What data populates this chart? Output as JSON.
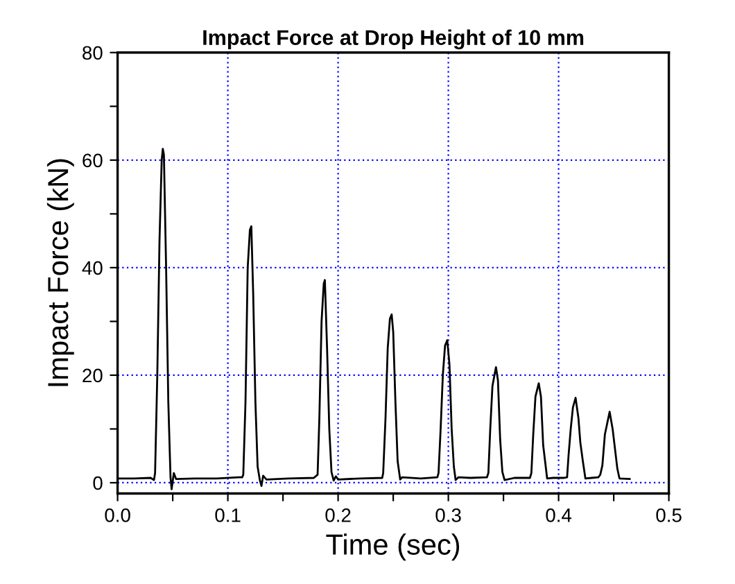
{
  "chart_data": {
    "type": "line",
    "title": "Impact Force at Drop Height of 10 mm",
    "xlabel": "Time (sec)",
    "ylabel": "Impact Force (kN)",
    "xlim": [
      0,
      0.5
    ],
    "ylim": [
      -2,
      80
    ],
    "xticks": [
      {
        "value": 0,
        "label": "0.0"
      },
      {
        "value": 0.05,
        "label": null
      },
      {
        "value": 0.1,
        "label": "0.1"
      },
      {
        "value": 0.15,
        "label": null
      },
      {
        "value": 0.2,
        "label": "0.2"
      },
      {
        "value": 0.25,
        "label": null
      },
      {
        "value": 0.3,
        "label": "0.3"
      },
      {
        "value": 0.35,
        "label": null
      },
      {
        "value": 0.4,
        "label": "0.4"
      },
      {
        "value": 0.45,
        "label": null
      },
      {
        "value": 0.5,
        "label": "0.5"
      }
    ],
    "yticks": [
      0,
      {
        "value": 10,
        "label": null
      },
      20,
      {
        "value": 30,
        "label": null
      },
      40,
      {
        "value": 50,
        "label": null
      },
      60,
      {
        "value": 70,
        "label": null
      },
      80
    ],
    "grid": true,
    "marker": "none",
    "line_style": "solid",
    "series": [
      {
        "color": "#000000",
        "x": [
          0.0,
          0.015,
          0.03,
          0.033,
          0.034,
          0.036,
          0.038,
          0.04,
          0.041,
          0.042,
          0.044,
          0.046,
          0.048,
          0.049,
          0.05,
          0.051,
          0.053,
          0.07,
          0.09,
          0.11,
          0.113,
          0.114,
          0.116,
          0.118,
          0.12,
          0.1213,
          0.123,
          0.125,
          0.127,
          0.129,
          0.1305,
          0.132,
          0.135,
          0.155,
          0.178,
          0.1814,
          0.183,
          0.185,
          0.187,
          0.188,
          0.19,
          0.192,
          0.194,
          0.196,
          0.198,
          0.2,
          0.22,
          0.24,
          0.2409,
          0.243,
          0.245,
          0.247,
          0.2486,
          0.25,
          0.252,
          0.254,
          0.2563,
          0.258,
          0.275,
          0.29,
          0.2911,
          0.293,
          0.295,
          0.297,
          0.299,
          0.301,
          0.303,
          0.305,
          0.3066,
          0.309,
          0.32,
          0.335,
          0.3363,
          0.338,
          0.34,
          0.3432,
          0.345,
          0.347,
          0.349,
          0.351,
          0.36,
          0.374,
          0.3753,
          0.377,
          0.379,
          0.382,
          0.384,
          0.386,
          0.3896,
          0.395,
          0.405,
          0.4077,
          0.409,
          0.411,
          0.413,
          0.4154,
          0.418,
          0.4197,
          0.422,
          0.4243,
          0.43,
          0.436,
          0.4378,
          0.4397,
          0.442,
          0.4463,
          0.449,
          0.4533,
          0.4552,
          0.4645
        ],
        "values": [
          0.8,
          0.8,
          0.9,
          0.5,
          1.8,
          20,
          45,
          60,
          62.1,
          61,
          40,
          15,
          1,
          -1.2,
          0.3,
          1.8,
          0.7,
          0.8,
          0.8,
          1.0,
          1.0,
          1.5,
          15,
          40,
          47.0,
          47.7,
          35,
          15,
          3,
          0.5,
          -0.6,
          1.3,
          0.6,
          0.8,
          0.9,
          1.5,
          12,
          30,
          37,
          37.7,
          25,
          10,
          2,
          0.4,
          1.2,
          0.6,
          0.8,
          0.9,
          1.8,
          12,
          25,
          30.5,
          31.3,
          28,
          15,
          4,
          0.6,
          1.0,
          0.8,
          1.0,
          1.8,
          10,
          20,
          25.5,
          26.5,
          22,
          10,
          3,
          0.5,
          1.0,
          0.9,
          1.0,
          1.8,
          10,
          18,
          21.5,
          19,
          8,
          2,
          0.5,
          0.9,
          0.9,
          1.8,
          9,
          16,
          18.5,
          16,
          7,
          0.8,
          0.9,
          0.9,
          1.0,
          5,
          10,
          14,
          15.8,
          12,
          7.5,
          4,
          0.8,
          0.9,
          1.0,
          1.5,
          3.2,
          9,
          13.2,
          10,
          2.6,
          0.8,
          0.7
        ]
      }
    ]
  }
}
